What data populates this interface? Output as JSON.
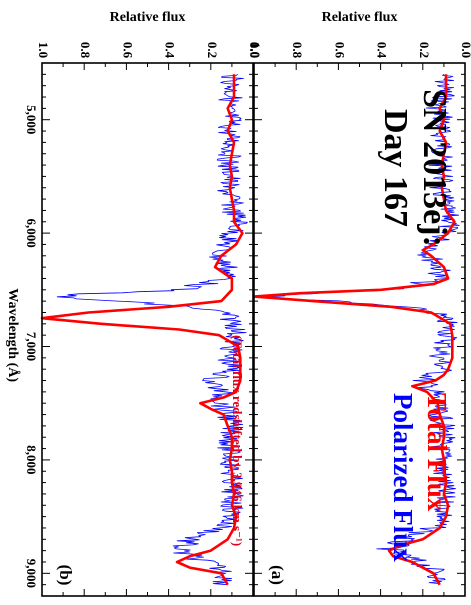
{
  "chart_data": {
    "type": "line",
    "orientation": "rotated 90° clockwise (wavelength runs top-to-bottom, flux increases to the left)",
    "shared_xlabel": "Wavelength (Å)",
    "x_ticks": [
      "5,000",
      "6,000",
      "7,000",
      "8,000",
      "9,000"
    ],
    "xlim": [
      4500,
      9200
    ],
    "panels": [
      {
        "id": "a",
        "panel_label": "(a)",
        "title_line1": "SN 2013ej:",
        "title_line2": "Day 167",
        "ylabel": "Relative flux",
        "ylim": [
          0,
          1
        ],
        "y_ticks": [
          "0.0",
          "0.2",
          "0.4",
          "0.6",
          "0.8",
          "1.0"
        ],
        "legend": [
          {
            "label": "Total Flux",
            "color": "#ff0000"
          },
          {
            "label": "Polarized Flux",
            "color": "#0000ff"
          }
        ],
        "series": [
          {
            "name": "Total Flux",
            "color": "#ff0000",
            "x": [
              4600,
              4800,
              4900,
              5000,
              5100,
              5200,
              5300,
              5400,
              5500,
              5600,
              5700,
              5800,
              5900,
              6000,
              6100,
              6150,
              6200,
              6300,
              6400,
              6450,
              6500,
              6530,
              6560,
              6600,
              6650,
              6700,
              6800,
              6900,
              7000,
              7100,
              7200,
              7250,
              7300,
              7350,
              7400,
              7500,
              7600,
              7700,
              7800,
              7900,
              8000,
              8100,
              8200,
              8300,
              8400,
              8500,
              8600,
              8700,
              8750,
              8800,
              8850,
              8900,
              9000,
              9100
            ],
            "values": [
              0.09,
              0.09,
              0.12,
              0.1,
              0.12,
              0.09,
              0.1,
              0.11,
              0.1,
              0.11,
              0.1,
              0.09,
              0.05,
              0.08,
              0.15,
              0.2,
              0.16,
              0.1,
              0.08,
              0.15,
              0.4,
              0.78,
              1.0,
              0.72,
              0.35,
              0.16,
              0.07,
              0.06,
              0.06,
              0.06,
              0.08,
              0.1,
              0.14,
              0.25,
              0.18,
              0.13,
              0.12,
              0.1,
              0.1,
              0.11,
              0.1,
              0.1,
              0.09,
              0.1,
              0.08,
              0.09,
              0.12,
              0.2,
              0.3,
              0.36,
              0.34,
              0.25,
              0.15,
              0.12
            ]
          },
          {
            "name": "Polarized Flux",
            "color": "#0000ff",
            "x": [
              4600,
              4800,
              4900,
              5000,
              5100,
              5200,
              5300,
              5400,
              5500,
              5600,
              5700,
              5800,
              5900,
              6000,
              6100,
              6200,
              6300,
              6400,
              6500,
              6530,
              6560,
              6600,
              6650,
              6700,
              6800,
              6900,
              7000,
              7100,
              7200,
              7300,
              7400,
              7500,
              7600,
              7700,
              7800,
              7900,
              8000,
              8100,
              8200,
              8300,
              8400,
              8500,
              8600,
              8700,
              8800,
              8900,
              9000,
              9100
            ],
            "values": [
              0.1,
              0.1,
              0.13,
              0.1,
              0.12,
              0.1,
              0.11,
              0.12,
              0.1,
              0.13,
              0.1,
              0.1,
              0.06,
              0.1,
              0.13,
              0.17,
              0.12,
              0.12,
              0.35,
              0.7,
              0.98,
              0.65,
              0.3,
              0.14,
              0.08,
              0.08,
              0.1,
              0.12,
              0.1,
              0.2,
              0.15,
              0.15,
              0.12,
              0.1,
              0.1,
              0.12,
              0.1,
              0.11,
              0.1,
              0.1,
              0.1,
              0.1,
              0.15,
              0.3,
              0.36,
              0.22,
              0.12,
              0.14
            ],
            "noise_amplitude": 0.05
          }
        ]
      },
      {
        "id": "b",
        "panel_label": "(b)",
        "annotation": "(Total flux redshifted by 3,946 km s⁻¹)",
        "ylabel": "Relative flux",
        "ylim": [
          0,
          1
        ],
        "y_ticks": [
          "0.0",
          "0.2",
          "0.4",
          "0.6",
          "0.8",
          "1.0"
        ],
        "series": [
          {
            "name": "Total Flux",
            "color": "#ff0000",
            "x": [
              4600,
              4800,
              4900,
              5000,
              5100,
              5200,
              5300,
              5400,
              5500,
              5600,
              5700,
              5800,
              5900,
              6000,
              6100,
              6200,
              6300,
              6400,
              6500,
              6600,
              6650,
              6700,
              6750,
              6800,
              6850,
              6900,
              7000,
              7100,
              7200,
              7300,
              7400,
              7450,
              7500,
              7550,
              7600,
              7700,
              7800,
              7900,
              8000,
              8100,
              8200,
              8300,
              8400,
              8500,
              8600,
              8700,
              8800,
              8850,
              8900,
              8950,
              9000,
              9100
            ],
            "values": [
              0.09,
              0.09,
              0.12,
              0.1,
              0.12,
              0.09,
              0.1,
              0.11,
              0.1,
              0.11,
              0.1,
              0.09,
              0.09,
              0.05,
              0.08,
              0.15,
              0.18,
              0.1,
              0.1,
              0.15,
              0.4,
              0.78,
              1.0,
              0.72,
              0.35,
              0.16,
              0.07,
              0.06,
              0.06,
              0.06,
              0.08,
              0.14,
              0.25,
              0.2,
              0.14,
              0.12,
              0.1,
              0.1,
              0.11,
              0.1,
              0.1,
              0.09,
              0.1,
              0.08,
              0.09,
              0.12,
              0.2,
              0.3,
              0.36,
              0.3,
              0.15,
              0.12
            ]
          },
          {
            "name": "Polarized Flux",
            "color": "#0000ff",
            "x": [
              4600,
              4800,
              4900,
              5000,
              5100,
              5200,
              5300,
              5400,
              5500,
              5600,
              5700,
              5800,
              5900,
              6000,
              6100,
              6200,
              6300,
              6400,
              6500,
              6530,
              6560,
              6600,
              6650,
              6700,
              6800,
              6900,
              7000,
              7100,
              7200,
              7300,
              7400,
              7500,
              7600,
              7700,
              7800,
              7900,
              8000,
              8100,
              8200,
              8300,
              8400,
              8500,
              8600,
              8700,
              8800,
              8900,
              9000,
              9100
            ],
            "values": [
              0.1,
              0.1,
              0.13,
              0.1,
              0.12,
              0.1,
              0.11,
              0.12,
              0.1,
              0.13,
              0.1,
              0.1,
              0.06,
              0.1,
              0.13,
              0.17,
              0.12,
              0.12,
              0.35,
              0.7,
              0.98,
              0.65,
              0.3,
              0.14,
              0.08,
              0.08,
              0.1,
              0.12,
              0.1,
              0.2,
              0.15,
              0.15,
              0.12,
              0.1,
              0.1,
              0.12,
              0.1,
              0.11,
              0.1,
              0.1,
              0.1,
              0.1,
              0.15,
              0.3,
              0.36,
              0.22,
              0.12,
              0.14
            ],
            "noise_amplitude": 0.05
          }
        ]
      }
    ]
  }
}
